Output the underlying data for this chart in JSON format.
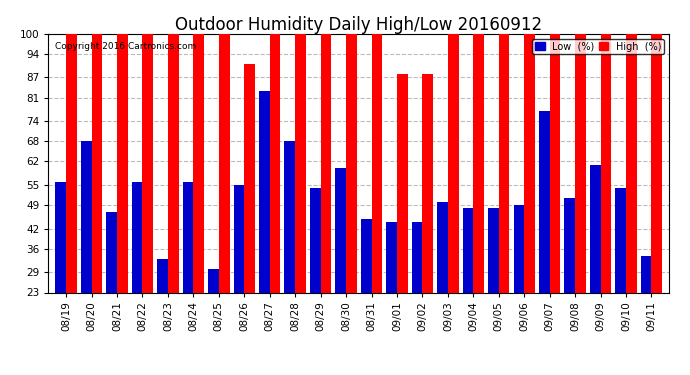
{
  "title": "Outdoor Humidity Daily High/Low 20160912",
  "copyright": "Copyright 2016 Cartronics.com",
  "dates": [
    "08/19",
    "08/20",
    "08/21",
    "08/22",
    "08/23",
    "08/24",
    "08/25",
    "08/26",
    "08/27",
    "08/28",
    "08/29",
    "08/30",
    "08/31",
    "09/01",
    "09/02",
    "09/03",
    "09/04",
    "09/05",
    "09/06",
    "09/07",
    "09/08",
    "09/09",
    "09/10",
    "09/11"
  ],
  "high": [
    100,
    100,
    100,
    100,
    100,
    100,
    100,
    91,
    100,
    100,
    100,
    100,
    100,
    88,
    88,
    100,
    100,
    100,
    100,
    100,
    100,
    100,
    100,
    100
  ],
  "low": [
    56,
    68,
    47,
    56,
    33,
    56,
    30,
    55,
    83,
    68,
    54,
    60,
    45,
    44,
    44,
    50,
    48,
    48,
    49,
    77,
    51,
    61,
    54,
    34
  ],
  "ylim_min": 23,
  "ylim_max": 100,
  "yticks": [
    23,
    29,
    36,
    42,
    49,
    55,
    62,
    68,
    74,
    81,
    87,
    94,
    100
  ],
  "bar_color_high": "#ff0000",
  "bar_color_low": "#0000cc",
  "bg_color": "#ffffff",
  "grid_color": "#bbbbbb",
  "title_fontsize": 12,
  "tick_fontsize": 7.5,
  "legend_high_label": "High  (%)",
  "legend_low_label": "Low  (%)"
}
